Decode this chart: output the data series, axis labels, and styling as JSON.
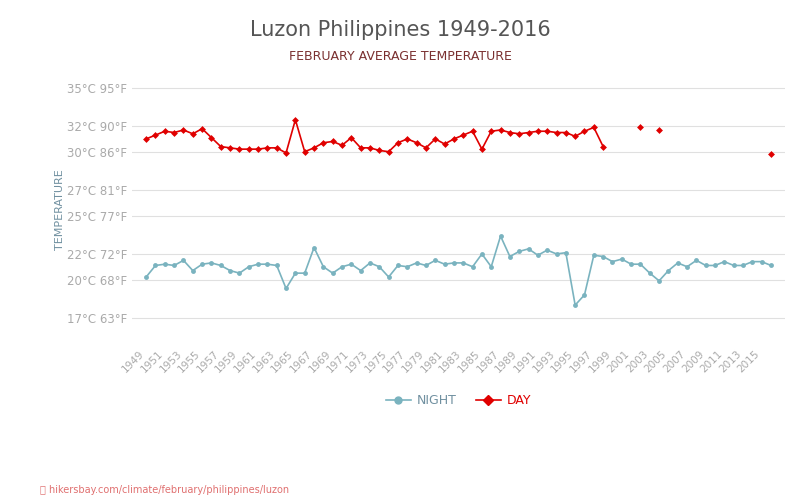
{
  "title": "Luzon Philippines 1949-2016",
  "subtitle": "FEBRUARY AVERAGE TEMPERATURE",
  "ylabel": "TEMPERATURE",
  "footer": "hikersbay.com/climate/february/philippines/luzon",
  "years": [
    1949,
    1950,
    1951,
    1952,
    1953,
    1954,
    1955,
    1956,
    1957,
    1958,
    1959,
    1960,
    1961,
    1962,
    1963,
    1964,
    1965,
    1966,
    1967,
    1968,
    1969,
    1970,
    1971,
    1972,
    1973,
    1974,
    1975,
    1976,
    1977,
    1978,
    1979,
    1980,
    1981,
    1982,
    1983,
    1984,
    1985,
    1986,
    1987,
    1988,
    1989,
    1990,
    1991,
    1992,
    1993,
    1994,
    1995,
    1996,
    1997,
    1998,
    1999,
    2000,
    2001,
    2002,
    2003,
    2004,
    2005,
    2006,
    2007,
    2008,
    2009,
    2010,
    2011,
    2012,
    2013,
    2014,
    2015,
    2016
  ],
  "day_temps": [
    31.0,
    31.3,
    31.6,
    31.5,
    31.7,
    31.4,
    31.8,
    31.1,
    30.4,
    30.3,
    30.2,
    30.2,
    30.2,
    30.3,
    30.3,
    29.9,
    32.5,
    30.0,
    30.3,
    30.7,
    30.8,
    30.5,
    31.1,
    30.3,
    30.3,
    30.1,
    30.0,
    30.7,
    31.0,
    30.7,
    30.3,
    31.0,
    30.6,
    31.0,
    31.3,
    31.6,
    30.2,
    31.6,
    31.7,
    31.5,
    31.4,
    31.5,
    31.6,
    31.6,
    31.5,
    31.5,
    31.2,
    31.6,
    31.9,
    30.4,
    null,
    null,
    null,
    31.9,
    null,
    31.7,
    null,
    null,
    null,
    null,
    null,
    null,
    null,
    null,
    null,
    null,
    null,
    29.8
  ],
  "night_temps": [
    20.2,
    21.1,
    21.2,
    21.1,
    21.5,
    20.7,
    21.2,
    21.3,
    21.1,
    20.7,
    20.5,
    21.0,
    21.2,
    21.2,
    21.1,
    19.3,
    20.5,
    20.5,
    22.5,
    21.0,
    20.5,
    21.0,
    21.2,
    20.7,
    21.3,
    21.0,
    20.2,
    21.1,
    21.0,
    21.3,
    21.1,
    21.5,
    21.2,
    21.3,
    21.3,
    21.0,
    22.0,
    21.0,
    23.4,
    21.8,
    22.2,
    22.4,
    21.9,
    22.3,
    22.0,
    22.1,
    18.0,
    18.8,
    21.9,
    21.8,
    21.4,
    21.6,
    21.2,
    21.2,
    20.5,
    19.9,
    20.7,
    21.3,
    21.0,
    21.5,
    21.1,
    21.1,
    21.4,
    21.1,
    21.1,
    21.4,
    21.4,
    21.1
  ],
  "title_color": "#555555",
  "subtitle_color": "#7a3030",
  "day_color": "#e00000",
  "night_color": "#7ab3bf",
  "axis_label_color": "#7a3030",
  "tick_color": "#aaaaaa",
  "grid_color": "#e0e0e0",
  "background_color": "#ffffff",
  "yticks_c": [
    17,
    20,
    22,
    25,
    27,
    30,
    32,
    35
  ],
  "yticks_f": [
    63,
    68,
    72,
    77,
    81,
    86,
    90,
    95
  ],
  "ylim": [
    15,
    36
  ],
  "legend_night": "NIGHT",
  "legend_day": "DAY"
}
